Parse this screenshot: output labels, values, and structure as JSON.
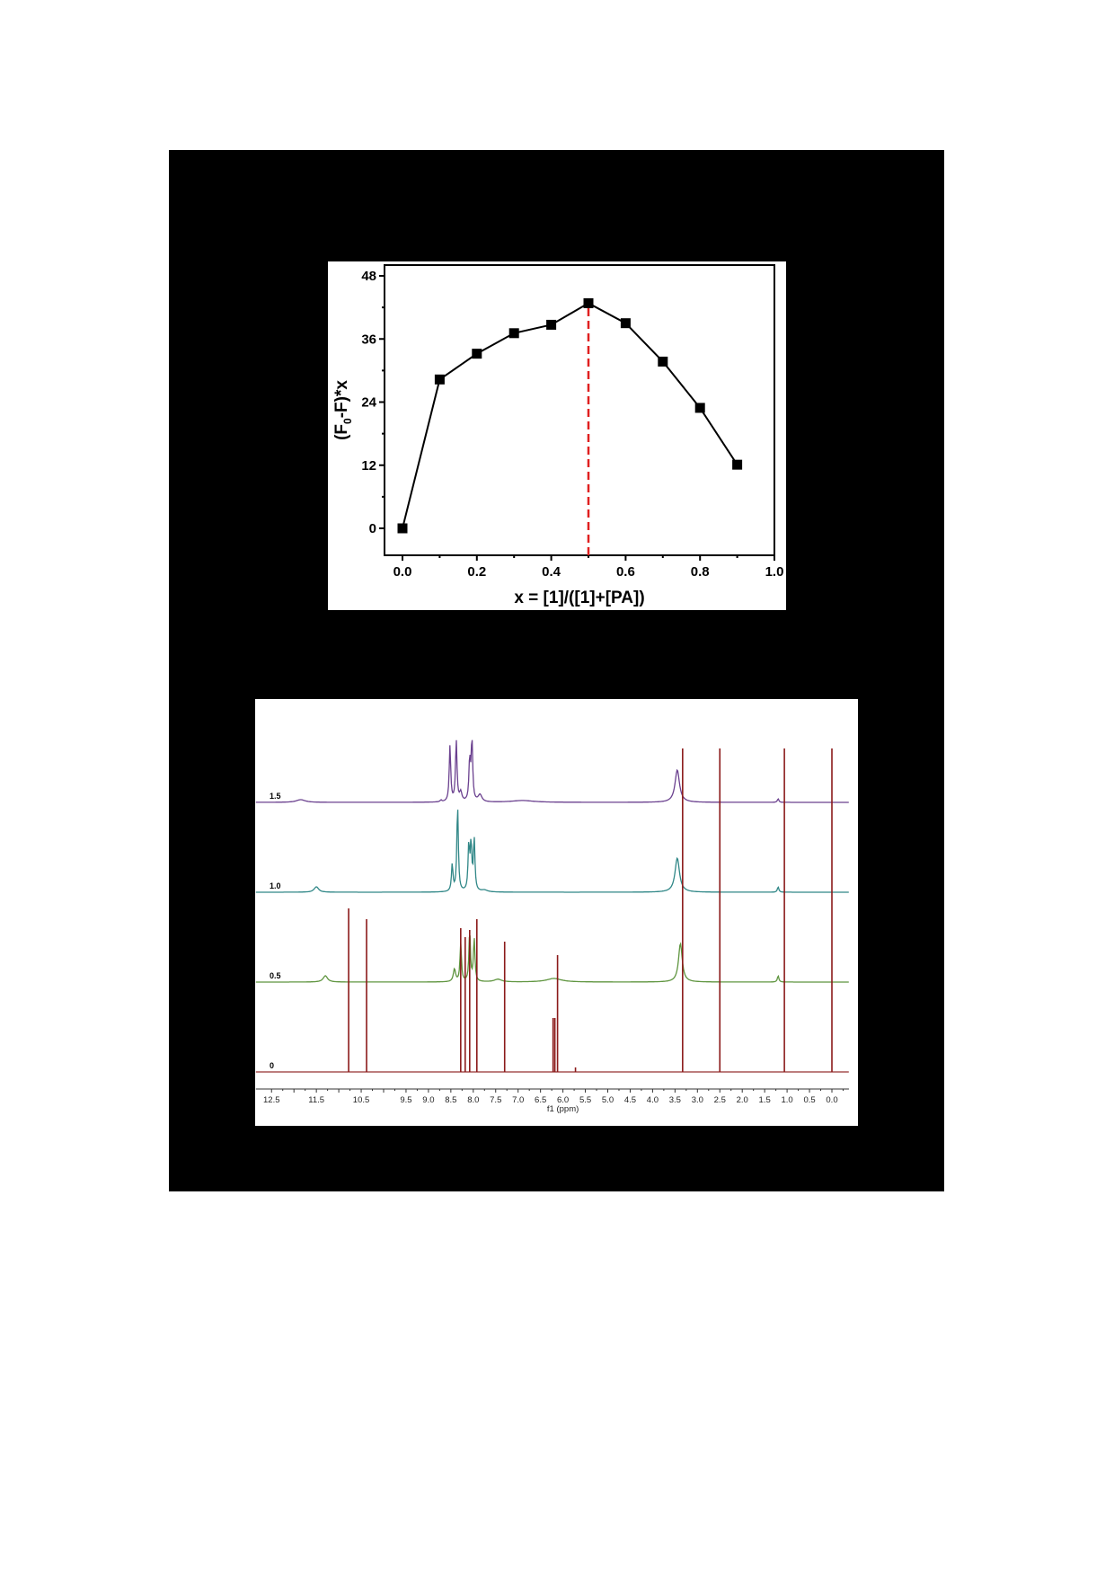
{
  "chart_data": [
    {
      "type": "line",
      "title": "",
      "xlabel": "x = [1]/([1]+[PA])",
      "ylabel": "(F0-F)*x",
      "ylabel_parts": {
        "open": "(F",
        "sub": "0",
        "rest": "-F)*x"
      },
      "xlim": [
        -0.05,
        1.0
      ],
      "ylim": [
        -5,
        50
      ],
      "xticks": [
        0.0,
        0.2,
        0.4,
        0.6,
        0.8,
        1.0
      ],
      "xtick_labels": [
        "0.0",
        "0.2",
        "0.4",
        "0.6",
        "0.8",
        "1.0"
      ],
      "yticks": [
        0,
        12,
        24,
        36,
        48
      ],
      "ytick_labels": [
        "0",
        "12",
        "24",
        "36",
        "48"
      ],
      "grid": false,
      "legend": null,
      "marker": "square",
      "series": [
        {
          "name": "(F0-F)*x",
          "color": "#000000",
          "x": [
            0.0,
            0.1,
            0.2,
            0.3,
            0.4,
            0.5,
            0.6,
            0.7,
            0.8,
            0.9
          ],
          "values": [
            0.0,
            28.3,
            33.2,
            37.1,
            38.7,
            42.8,
            39.0,
            31.7,
            22.9,
            12.1
          ]
        }
      ],
      "annotations": [
        {
          "type": "vertical-dashed-line",
          "x": 0.5,
          "color": "#e02020",
          "from_y": -5,
          "to_y": 42.8
        }
      ]
    },
    {
      "type": "line",
      "title": "",
      "xlabel": "f1 (ppm)",
      "ylabel": "",
      "xlim": [
        12.7,
        -0.35
      ],
      "x_reversed": true,
      "xticks": [
        12.5,
        11.5,
        10.5,
        9.5,
        9.0,
        8.5,
        8.0,
        7.5,
        7.0,
        6.5,
        6.0,
        5.5,
        5.0,
        4.5,
        4.0,
        3.5,
        3.0,
        2.5,
        2.0,
        1.5,
        1.0,
        0.5,
        0.0
      ],
      "xtick_labels": [
        "12.5",
        "11.5",
        "10.5",
        "9.5",
        "9.0",
        "8.5",
        "8.0",
        "7.5",
        "7.0",
        "6.5",
        "6.0",
        "5.5",
        "5.0",
        "4.5",
        "4.0",
        "3.5",
        "3.0",
        "2.5",
        "2.0",
        "1.5",
        "1.0",
        "0.5",
        "0.0"
      ],
      "grid": false,
      "legend": null,
      "series": [
        {
          "name": "1.5",
          "color": "#5b2c83",
          "baseline_offset": 3,
          "peaks": [
            {
              "ppm": 11.85,
              "height": 0.03,
              "width": 0.12
            },
            {
              "ppm": 8.72,
              "height": 0.02,
              "width": 0.02
            },
            {
              "ppm": 8.52,
              "height": 0.62,
              "width": 0.02
            },
            {
              "ppm": 8.38,
              "height": 0.68,
              "width": 0.02
            },
            {
              "ppm": 8.28,
              "height": 0.1,
              "width": 0.03
            },
            {
              "ppm": 8.08,
              "height": 0.45,
              "width": 0.02
            },
            {
              "ppm": 8.03,
              "height": 0.68,
              "width": 0.02
            },
            {
              "ppm": 7.85,
              "height": 0.08,
              "width": 0.05
            },
            {
              "ppm": 6.9,
              "height": 0.02,
              "width": 0.3
            },
            {
              "ppm": 3.45,
              "height": 0.36,
              "width": 0.06
            },
            {
              "ppm": 1.2,
              "height": 0.04,
              "width": 0.02
            }
          ]
        },
        {
          "name": "1.0",
          "color": "#1a7a7a",
          "baseline_offset": 2,
          "peaks": [
            {
              "ppm": 11.5,
              "height": 0.06,
              "width": 0.06
            },
            {
              "ppm": 8.47,
              "height": 0.3,
              "width": 0.02
            },
            {
              "ppm": 8.35,
              "height": 0.96,
              "width": 0.02
            },
            {
              "ppm": 8.1,
              "height": 0.5,
              "width": 0.02
            },
            {
              "ppm": 8.05,
              "height": 0.51,
              "width": 0.02
            },
            {
              "ppm": 7.98,
              "height": 0.58,
              "width": 0.02
            },
            {
              "ppm": 7.75,
              "height": 0.02,
              "width": 0.08
            },
            {
              "ppm": 3.45,
              "height": 0.38,
              "width": 0.06
            },
            {
              "ppm": 1.2,
              "height": 0.06,
              "width": 0.02
            }
          ]
        },
        {
          "name": "0.5",
          "color": "#4e8a2a",
          "baseline_offset": 1,
          "peaks": [
            {
              "ppm": 11.3,
              "height": 0.07,
              "width": 0.06
            },
            {
              "ppm": 8.42,
              "height": 0.14,
              "width": 0.03
            },
            {
              "ppm": 8.28,
              "height": 0.43,
              "width": 0.02
            },
            {
              "ppm": 8.08,
              "height": 0.56,
              "width": 0.02
            },
            {
              "ppm": 7.98,
              "height": 0.48,
              "width": 0.02
            },
            {
              "ppm": 7.45,
              "height": 0.03,
              "width": 0.1
            },
            {
              "ppm": 6.2,
              "height": 0.04,
              "width": 0.2
            },
            {
              "ppm": 3.38,
              "height": 0.43,
              "width": 0.05
            },
            {
              "ppm": 1.2,
              "height": 0.07,
              "width": 0.02
            }
          ]
        },
        {
          "name": "0",
          "color": "#8b1a1a",
          "baseline_offset": 0,
          "peaks": [
            {
              "ppm": 10.78,
              "height": 1.82,
              "width": 0.01
            },
            {
              "ppm": 10.38,
              "height": 1.7,
              "width": 0.01
            },
            {
              "ppm": 8.28,
              "height": 1.6,
              "width": 0.01
            },
            {
              "ppm": 8.18,
              "height": 1.5,
              "width": 0.01
            },
            {
              "ppm": 8.08,
              "height": 1.58,
              "width": 0.01
            },
            {
              "ppm": 7.92,
              "height": 1.7,
              "width": 0.01
            },
            {
              "ppm": 7.3,
              "height": 1.45,
              "width": 0.01
            },
            {
              "ppm": 6.22,
              "height": 0.6,
              "width": 0.01
            },
            {
              "ppm": 6.18,
              "height": 0.6,
              "width": 0.01
            },
            {
              "ppm": 6.12,
              "height": 1.3,
              "width": 0.01
            },
            {
              "ppm": 5.72,
              "height": 0.05,
              "width": 0.01
            },
            {
              "ppm": 3.33,
              "height": 3.6,
              "width": 0.01
            },
            {
              "ppm": 2.5,
              "height": 3.6,
              "width": 0.01
            },
            {
              "ppm": 1.06,
              "height": 3.6,
              "width": 0.01
            },
            {
              "ppm": 0.0,
              "height": 3.6,
              "width": 0.01
            }
          ]
        }
      ]
    }
  ]
}
